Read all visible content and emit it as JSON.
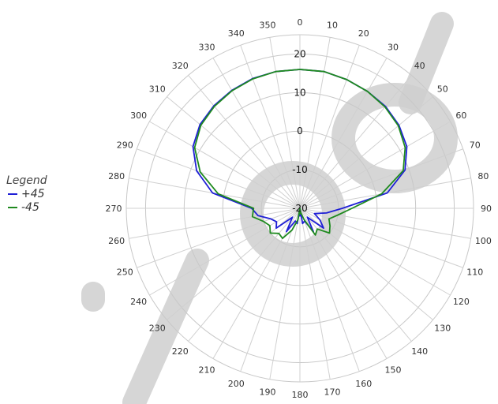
{
  "chart_data": {
    "type": "polar-line",
    "angle_ticks": [
      "0",
      "10",
      "20",
      "30",
      "40",
      "50",
      "60",
      "70",
      "80",
      "90",
      "100",
      "110",
      "120",
      "130",
      "140",
      "150",
      "160",
      "170",
      "180",
      "190",
      "200",
      "210",
      "220",
      "230",
      "240",
      "250",
      "260",
      "270",
      "280",
      "290",
      "300",
      "310",
      "320",
      "330",
      "340",
      "350"
    ],
    "radial_ticks": [
      "20",
      "10",
      "0",
      "-10",
      "-20"
    ],
    "radial_range": [
      -20,
      25
    ],
    "angle_step_deg": 10,
    "legend_title": "Legend",
    "legend_position": "left",
    "grid": true,
    "series": [
      {
        "name": "+45",
        "color": "#1f1fd6",
        "angles": [
          0,
          10,
          20,
          30,
          40,
          50,
          60,
          70,
          80,
          90,
          100,
          110,
          120,
          130,
          140,
          150,
          160,
          170,
          175,
          180,
          185,
          190,
          200,
          210,
          220,
          230,
          240,
          250,
          260,
          270,
          280,
          290,
          300,
          310,
          320,
          330,
          340,
          350
        ],
        "values": [
          16,
          16,
          15.5,
          15,
          14.5,
          13.5,
          12,
          9,
          3,
          -9,
          -13,
          -16,
          -14,
          -12,
          -17,
          -13,
          -16.5,
          -16,
          -20,
          -18,
          -20,
          -16,
          -16.5,
          -13,
          -17,
          -12,
          -13,
          -12,
          -9,
          -7.5,
          3,
          8.5,
          12,
          13.8,
          14.7,
          15.3,
          15.8,
          16
        ]
      },
      {
        "name": "-45",
        "color": "#1f8a1f",
        "angles": [
          0,
          10,
          20,
          30,
          40,
          50,
          60,
          70,
          80,
          90,
          100,
          110,
          120,
          130,
          140,
          150,
          160,
          170,
          175,
          180,
          185,
          190,
          200,
          210,
          220,
          230,
          240,
          250,
          260,
          270,
          280,
          290,
          300,
          310,
          320,
          330,
          340,
          350
        ],
        "values": [
          16,
          16,
          15.5,
          15,
          14.3,
          13.3,
          11.5,
          8.5,
          1.5,
          -6.5,
          -10,
          -12,
          -11,
          -10,
          -13,
          -12,
          -17,
          -19,
          -20,
          -18.5,
          -20,
          -17,
          -14,
          -11,
          -11.5,
          -10,
          -11,
          -10,
          -7.5,
          -8,
          1.5,
          7.5,
          11.5,
          13.5,
          14.5,
          15.2,
          15.7,
          16
        ]
      }
    ]
  }
}
